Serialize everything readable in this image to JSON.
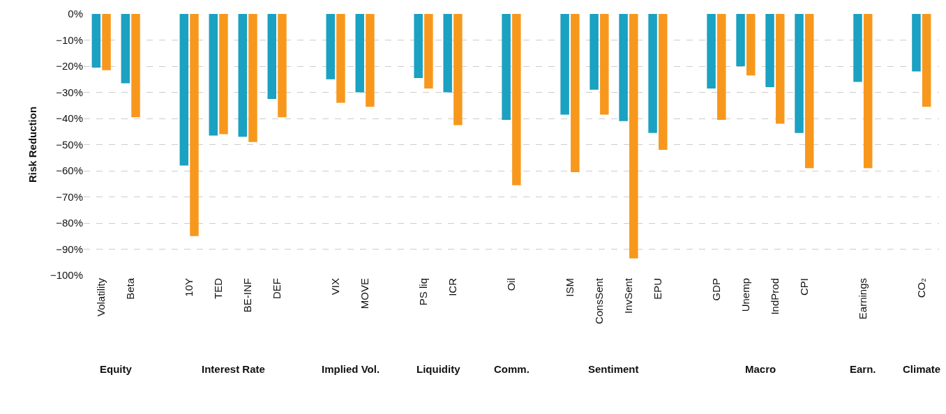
{
  "chart_data": {
    "type": "bar",
    "categories": [
      "Volatility",
      "Beta",
      null,
      "10Y",
      "TED",
      "BE-INF",
      "DEF",
      null,
      "VIX",
      "MOVE",
      null,
      "PS liq",
      "ICR",
      null,
      "Oil",
      null,
      "ISM",
      "ConsSent",
      "InvSent",
      "EPU",
      null,
      "GDP",
      "Unemp",
      "IndProd",
      "CPI",
      null,
      "Earnings",
      null,
      "CO₂"
    ],
    "series": [
      {
        "color": "#1ba1c1",
        "values": [
          -20.5,
          -26.5,
          null,
          -58,
          -46.5,
          -47,
          -32.5,
          null,
          -25,
          -30,
          null,
          -24.5,
          -30,
          null,
          -40.5,
          null,
          -38.5,
          -29,
          -41,
          -45.5,
          null,
          -28.5,
          -20,
          -28,
          -45.5,
          null,
          -26,
          null,
          -22
        ]
      },
      {
        "color": "#f7981d",
        "values": [
          -21.5,
          -39.5,
          null,
          -85,
          -46,
          -49,
          -39.5,
          null,
          -34,
          -35.5,
          null,
          -28.5,
          -42.5,
          null,
          -65.5,
          null,
          -60.5,
          -38.5,
          -93.5,
          -52,
          null,
          -40.5,
          -23.5,
          -42,
          -59,
          null,
          -59,
          null,
          -35.5
        ]
      }
    ],
    "ylabel": "Risk Reduction",
    "annotations": [
      "Equity",
      "Interest Rate",
      "Implied Vol.",
      "Liquidity",
      "Comm.",
      "Sentiment",
      "Macro",
      "Earn.",
      "Climate"
    ],
    "ylim": [
      -100,
      0
    ],
    "yticks": [
      {
        "value": -100,
        "label": "−100%"
      },
      {
        "value": -90,
        "label": "−90%"
      },
      {
        "value": -80,
        "label": "−80%"
      },
      {
        "value": -70,
        "label": "−70%"
      },
      {
        "value": -60,
        "label": "−60%"
      },
      {
        "value": -50,
        "label": "−50%"
      },
      {
        "value": -40,
        "label": "−40%"
      },
      {
        "value": -30,
        "label": "−30%"
      },
      {
        "value": -20,
        "label": "−20%"
      },
      {
        "value": -10,
        "label": "−10%"
      },
      {
        "value": 0,
        "label": "0%"
      }
    ],
    "grid": "y"
  }
}
